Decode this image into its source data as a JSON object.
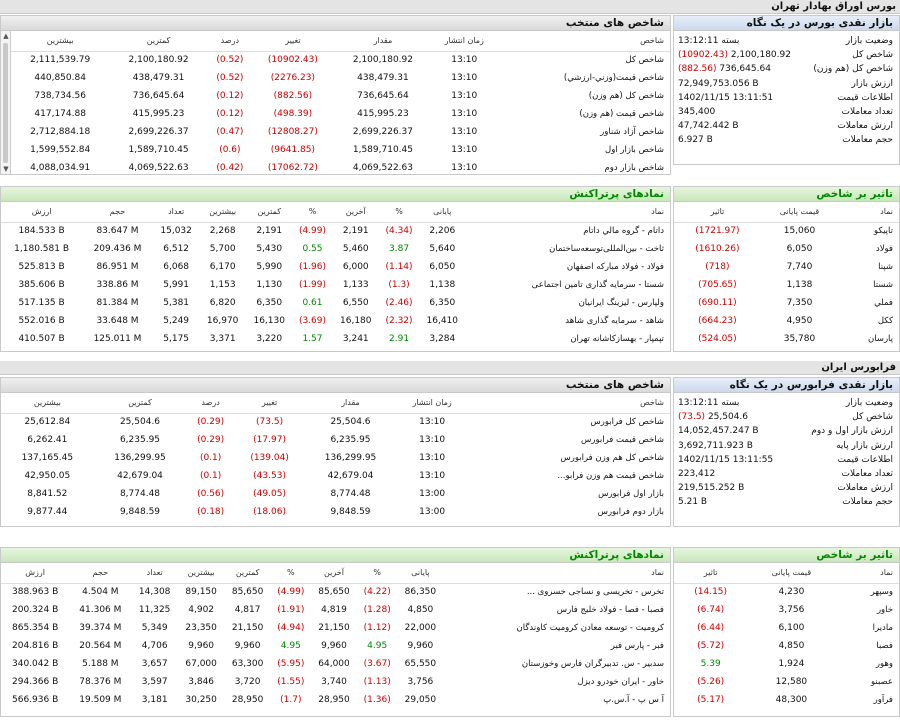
{
  "top_strip_colors": [
    "#d6b3e6",
    "#9fc4ef",
    "#8fd2d8",
    "#b9e3a6",
    "#f3e08a",
    "#f6c38f",
    "#f1a1a1",
    "#c9b6e8"
  ],
  "bourse": {
    "section_title": "بورس اوراق بهادار تهران",
    "indices": {
      "title": "شاخص های منتخب",
      "headers": [
        "شاخص",
        "زمان انتشار",
        "مقدار",
        "تغییر",
        "درصد",
        "کمترین",
        "بیشترین"
      ],
      "rows": [
        {
          "name": "شاخص كل",
          "time": "13:10",
          "value": "2,100,180.92",
          "change": "(10902.43)",
          "pct": "(0.52)",
          "low": "2,100,180.92",
          "high": "2,111,539.79"
        },
        {
          "name": "شاخص قیمت(وزني-ارزشي)",
          "time": "13:10",
          "value": "438,479.31",
          "change": "(2276.23)",
          "pct": "(0.52)",
          "low": "438,479.31",
          "high": "440,850.84"
        },
        {
          "name": "شاخص كل (هم وزن)",
          "time": "13:10",
          "value": "736,645.64",
          "change": "(882.56)",
          "pct": "(0.12)",
          "low": "736,645.64",
          "high": "738,734.56"
        },
        {
          "name": "شاخص قیمت (هم وزن)",
          "time": "13:10",
          "value": "415,995.23",
          "change": "(498.39)",
          "pct": "(0.12)",
          "low": "415,995.23",
          "high": "417,174.88"
        },
        {
          "name": "شاخص آزاد شناور",
          "time": "13:10",
          "value": "2,699,226.37",
          "change": "(12808.27)",
          "pct": "(0.47)",
          "low": "2,699,226.37",
          "high": "2,712,884.18"
        },
        {
          "name": "شاخص بازار اول",
          "time": "13:10",
          "value": "1,589,710.45",
          "change": "(9641.85)",
          "pct": "(0.6)",
          "low": "1,589,710.45",
          "high": "1,599,552.84"
        },
        {
          "name": "شاخص بازار دوم",
          "time": "13:10",
          "value": "4,069,522.63",
          "change": "(17062.72)",
          "pct": "(0.42)",
          "low": "4,069,522.63",
          "high": "4,088,034.91"
        }
      ]
    },
    "glance": {
      "title": "بازار نقدی بورس در یک نگاه",
      "rows": [
        {
          "k": "وضعیت بازار",
          "v": "بسته 13:12:11"
        },
        {
          "k": "شاخص کل",
          "v": "2,100,180.92",
          "neg": "(10902.43)"
        },
        {
          "k": "شاخص کل (هم وزن)",
          "v": "736,645.64",
          "neg": "(882.56)"
        },
        {
          "k": "ارزش بازار",
          "v": "72,949,753.056 B"
        },
        {
          "k": "اطلاعات قیمت",
          "v": "1402/11/15 13:11:51"
        },
        {
          "k": "تعداد معاملات",
          "v": "345,400"
        },
        {
          "k": "ارزش معاملات",
          "v": "47,742.442 B"
        },
        {
          "k": "حجم معاملات",
          "v": "6.927 B"
        }
      ]
    },
    "active": {
      "title": "نمادهای پرتراکنش",
      "headers": [
        "نماد",
        "پایانی",
        "%",
        "آخرین",
        "%",
        "کمترین",
        "بیشترین",
        "تعداد",
        "حجم",
        "ارزش"
      ],
      "rows": [
        {
          "name": "داتام - گروه مالي داتام",
          "close": "2,206",
          "cp": "(4.34)",
          "cpc": "red",
          "last": "2,191",
          "lp": "(4.99)",
          "lpc": "red",
          "low": "2,191",
          "high": "2,268",
          "count": "15,032",
          "vol": "83.647 M",
          "val": "184.533 B"
        },
        {
          "name": "ثاخت - بین‌المللی‌توسعه‌ساختمان",
          "close": "5,640",
          "cp": "3.87",
          "cpc": "green",
          "last": "5,460",
          "lp": "0.55",
          "lpc": "green",
          "low": "5,430",
          "high": "5,700",
          "count": "6,512",
          "vol": "209.436 M",
          "val": "1,180.581 B"
        },
        {
          "name": "فولاد - فولاد مبارکه اصفهان",
          "close": "6,050",
          "cp": "(1.14)",
          "cpc": "red",
          "last": "6,000",
          "lp": "(1.96)",
          "lpc": "red",
          "low": "5,990",
          "high": "6,170",
          "count": "6,068",
          "vol": "86.951 M",
          "val": "525.813 B"
        },
        {
          "name": "شستا - سرمایه گذاری تامین اجتماعی",
          "close": "1,138",
          "cp": "(1.3)",
          "cpc": "red",
          "last": "1,133",
          "lp": "(1.99)",
          "lpc": "red",
          "low": "1,130",
          "high": "1,153",
          "count": "5,991",
          "vol": "338.86 M",
          "val": "385.606 B"
        },
        {
          "name": "ولپارس - لیزینگ ایرانیان",
          "close": "6,350",
          "cp": "(2.46)",
          "cpc": "red",
          "last": "6,550",
          "lp": "0.61",
          "lpc": "green",
          "low": "6,350",
          "high": "6,820",
          "count": "5,381",
          "vol": "81.384 M",
          "val": "517.135 B"
        },
        {
          "name": "شاهد - سرمایه گذاری شاهد",
          "close": "16,410",
          "cp": "(2.32)",
          "cpc": "red",
          "last": "16,180",
          "lp": "(3.69)",
          "lpc": "red",
          "low": "16,130",
          "high": "16,970",
          "count": "5,249",
          "vol": "33.648 M",
          "val": "552.016 B"
        },
        {
          "name": "تپمپار - بهسازکاشانه تهران",
          "close": "3,284",
          "cp": "2.91",
          "cpc": "green",
          "last": "3,241",
          "lp": "1.57",
          "lpc": "green",
          "low": "3,220",
          "high": "3,371",
          "count": "5,175",
          "vol": "125.011 M",
          "val": "410.507 B"
        }
      ]
    },
    "impact": {
      "title": "تاثیر بر شاخص",
      "headers": [
        "نماد",
        "قیمت پایانی",
        "تاثیر"
      ],
      "rows": [
        {
          "name": "تاپیکو",
          "price": "15,060",
          "effect": "(1721.97)",
          "c": "red"
        },
        {
          "name": "فولاد",
          "price": "6,050",
          "effect": "(1610.26)",
          "c": "red"
        },
        {
          "name": "شپنا",
          "price": "7,740",
          "effect": "(718)",
          "c": "red"
        },
        {
          "name": "شستا",
          "price": "1,138",
          "effect": "(705.65)",
          "c": "red"
        },
        {
          "name": "فملي",
          "price": "7,350",
          "effect": "(690.11)",
          "c": "red"
        },
        {
          "name": "ککل",
          "price": "4,950",
          "effect": "(664.23)",
          "c": "red"
        },
        {
          "name": "پارسان",
          "price": "35,780",
          "effect": "(524.05)",
          "c": "red"
        }
      ]
    }
  },
  "farabourse": {
    "section_title": "فرابورس ایران",
    "indices": {
      "title": "شاخص های منتخب",
      "headers": [
        "شاخص",
        "زمان انتشار",
        "مقدار",
        "تغییر",
        "درصد",
        "کمترین",
        "بیشترین"
      ],
      "rows": [
        {
          "name": "شاخص كل فرابورس",
          "time": "13:10",
          "value": "25,504.6",
          "change": "(73.5)",
          "pct": "(0.29)",
          "low": "25,504.6",
          "high": "25,612.84"
        },
        {
          "name": "شاخص قیمت فرابورس",
          "time": "13:10",
          "value": "6,235.95",
          "change": "(17.97)",
          "pct": "(0.29)",
          "low": "6,235.95",
          "high": "6,262.41"
        },
        {
          "name": "شاخص کل هم وزن فرابورس",
          "time": "13:10",
          "value": "136,299.95",
          "change": "(139.04)",
          "pct": "(0.1)",
          "low": "136,299.95",
          "high": "137,165.45"
        },
        {
          "name": "شاخص قیمت هم وزن فرابو...",
          "time": "13:10",
          "value": "42,679.04",
          "change": "(43.53)",
          "pct": "(0.1)",
          "low": "42,679.04",
          "high": "42,950.05"
        },
        {
          "name": "بازار اول فرابورس",
          "time": "13:00",
          "value": "8,774.48",
          "change": "(49.05)",
          "pct": "(0.56)",
          "low": "8,774.48",
          "high": "8,841.52"
        },
        {
          "name": "بازار دوم فرابورس",
          "time": "13:00",
          "value": "9,848.59",
          "change": "(18.06)",
          "pct": "(0.18)",
          "low": "9,848.59",
          "high": "9,877.44"
        }
      ]
    },
    "glance": {
      "title": "بازار نقدی فرابورس در یک نگاه",
      "rows": [
        {
          "k": "وضعیت بازار",
          "v": "بسته 13:12:11"
        },
        {
          "k": "شاخص کل",
          "v": "25,504.6",
          "neg": "(73.5)"
        },
        {
          "k": "ارزش بازار اول و دوم",
          "v": "14,052,457.247 B"
        },
        {
          "k": "ارزش بازار پایه",
          "v": "3,692,711.923 B"
        },
        {
          "k": "اطلاعات قیمت",
          "v": "1402/11/15 13:11:55"
        },
        {
          "k": "تعداد معاملات",
          "v": "223,412"
        },
        {
          "k": "ارزش معاملات",
          "v": "219,515.252 B"
        },
        {
          "k": "حجم معاملات",
          "v": "5.21 B"
        }
      ]
    },
    "active": {
      "title": "نمادهای پرتراکنش",
      "headers": [
        "نماد",
        "پایانی",
        "%",
        "آخرین",
        "%",
        "کمترین",
        "بیشترین",
        "تعداد",
        "حجم",
        "ارزش"
      ],
      "rows": [
        {
          "name": "تخرس - تخریسی و نساجی خسروی ...",
          "close": "86,350",
          "cp": "(4.22)",
          "cpc": "red",
          "last": "85,650",
          "lp": "(4.99)",
          "lpc": "red",
          "low": "85,650",
          "high": "89,150",
          "count": "14,308",
          "vol": "4.504 M",
          "val": "388.963 B"
        },
        {
          "name": "فصبا - فصا - فولاد خلیج فارس",
          "close": "4,850",
          "cp": "(1.28)",
          "cpc": "red",
          "last": "4,819",
          "lp": "(1.91)",
          "lpc": "red",
          "low": "4,817",
          "high": "4,902",
          "count": "11,325",
          "vol": "41.306 M",
          "val": "200.324 B"
        },
        {
          "name": "کرومیت - توسعه معادن کرومیت کاوندگان",
          "close": "22,000",
          "cp": "(1.12)",
          "cpc": "red",
          "last": "21,150",
          "lp": "(4.94)",
          "lpc": "red",
          "low": "21,150",
          "high": "23,350",
          "count": "5,349",
          "vol": "39.374 M",
          "val": "865.354 B"
        },
        {
          "name": "فبر - پارس فبر",
          "close": "9,960",
          "cp": "4.95",
          "cpc": "green",
          "last": "9,960",
          "lp": "4.95",
          "lpc": "green",
          "low": "9,960",
          "high": "9,960",
          "count": "4,706",
          "vol": "20.564 M",
          "val": "204.816 B"
        },
        {
          "name": "سدبیر - س. تدبیرگران فارس وخوزستان",
          "close": "65,550",
          "cp": "(3.67)",
          "cpc": "red",
          "last": "64,000",
          "lp": "(5.95)",
          "lpc": "red",
          "low": "63,300",
          "high": "67,000",
          "count": "3,657",
          "vol": "5.188 M",
          "val": "340.042 B"
        },
        {
          "name": "خاور - ایران خودرو دیزل",
          "close": "3,756",
          "cp": "(1.13)",
          "cpc": "red",
          "last": "3,740",
          "lp": "(1.55)",
          "lpc": "red",
          "low": "3,720",
          "high": "3,846",
          "count": "3,597",
          "vol": "78.376 M",
          "val": "294.366 B"
        },
        {
          "name": "آ س پ - آ.س.پ",
          "close": "29,050",
          "cp": "(1.36)",
          "cpc": "red",
          "last": "28,950",
          "lp": "(1.7)",
          "lpc": "red",
          "low": "28,950",
          "high": "30,250",
          "count": "3,181",
          "vol": "19.509 M",
          "val": "566.936 B"
        }
      ]
    },
    "impact": {
      "title": "تاثیر بر شاخص",
      "headers": [
        "نماد",
        "قیمت پایانی",
        "تاثیر"
      ],
      "rows": [
        {
          "name": "وسپهر",
          "price": "4,230",
          "effect": "(14.15)",
          "c": "red"
        },
        {
          "name": "خاور",
          "price": "3,756",
          "effect": "(6.74)",
          "c": "red"
        },
        {
          "name": "ماديرا",
          "price": "6,100",
          "effect": "(6.44)",
          "c": "red"
        },
        {
          "name": "فصبا",
          "price": "4,850",
          "effect": "(5.72)",
          "c": "red"
        },
        {
          "name": "وهور",
          "price": "1,924",
          "effect": "5.39",
          "c": "green"
        },
        {
          "name": "عصبنو",
          "price": "12,580",
          "effect": "(5.26)",
          "c": "red"
        },
        {
          "name": "فرآور",
          "price": "48,300",
          "effect": "(5.17)",
          "c": "red"
        }
      ]
    }
  }
}
